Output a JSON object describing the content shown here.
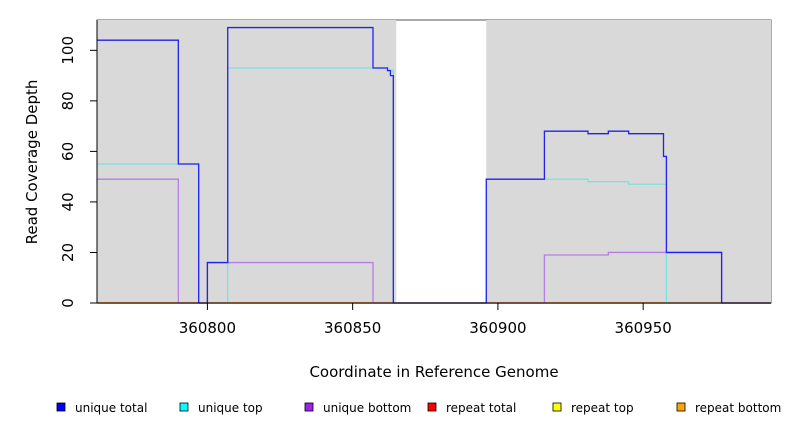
{
  "chart_data": {
    "type": "line",
    "xlabel": "Coordinate in Reference Genome",
    "ylabel": "Read Coverage Depth",
    "xlim": [
      360762,
      360994
    ],
    "ylim": [
      0,
      112
    ],
    "x_ticks": [
      360800,
      360850,
      360900,
      360950
    ],
    "x_tick_labels": [
      "360800",
      "360850",
      "360900",
      "360950"
    ],
    "y_ticks": [
      0,
      20,
      40,
      60,
      80,
      100
    ],
    "y_tick_labels": [
      "0",
      "20",
      "40",
      "60",
      "80",
      "100"
    ],
    "shaded_regions": [
      [
        360762,
        360865
      ],
      [
        360896,
        360994
      ]
    ],
    "legend": {
      "placement": "bottom",
      "entries": [
        {
          "label": "unique total",
          "color": "#0000ff"
        },
        {
          "label": "unique top",
          "color": "#00ffff"
        },
        {
          "label": "unique bottom",
          "color": "#a020f0"
        },
        {
          "label": "repeat total",
          "color": "#ff0000"
        },
        {
          "label": "repeat top",
          "color": "#ffff00"
        },
        {
          "label": "repeat bottom",
          "color": "#ffa500"
        }
      ]
    },
    "series": [
      {
        "name": "unique total",
        "color": "#2222ee",
        "x": [
          360762,
          360790,
          360790,
          360797,
          360797,
          360800,
          360800,
          360807,
          360807,
          360857,
          360857,
          360862,
          360862,
          360863,
          360863,
          360864,
          360864,
          360896,
          360896,
          360916,
          360916,
          360931,
          360931,
          360938,
          360938,
          360945,
          360945,
          360957,
          360957,
          360958,
          360958,
          360977,
          360977,
          360994
        ],
        "y": [
          104,
          104,
          55,
          55,
          0,
          0,
          16,
          16,
          109,
          109,
          93,
          93,
          92,
          92,
          90,
          90,
          0,
          0,
          49,
          49,
          68,
          68,
          67,
          67,
          68,
          68,
          67,
          67,
          58,
          58,
          20,
          20,
          0,
          0
        ]
      },
      {
        "name": "unique top",
        "color": "#7fe0e0",
        "x": [
          360762,
          360790,
          360790,
          360797,
          360797,
          360807,
          360807,
          360857,
          360857,
          360862,
          360862,
          360864,
          360864,
          360896,
          360896,
          360931,
          360931,
          360945,
          360945,
          360958,
          360958,
          360994
        ],
        "y": [
          55,
          55,
          55,
          55,
          0,
          0,
          93,
          93,
          93,
          93,
          92,
          92,
          0,
          0,
          49,
          49,
          48,
          48,
          47,
          47,
          0,
          0
        ]
      },
      {
        "name": "unique bottom",
        "color": "#b77fe0",
        "x": [
          360762,
          360790,
          360790,
          360800,
          360800,
          360857,
          360857,
          360916,
          360916,
          360938,
          360938,
          360958,
          360958,
          360977,
          360977,
          360994
        ],
        "y": [
          49,
          49,
          0,
          0,
          16,
          16,
          0,
          0,
          19,
          19,
          20,
          20,
          20,
          20,
          0,
          0
        ]
      },
      {
        "name": "repeat total",
        "color": "#ff0000",
        "x": [
          360762,
          360994
        ],
        "y": [
          0,
          0
        ]
      },
      {
        "name": "repeat top",
        "color": "#ffff00",
        "x": [
          360762,
          360994
        ],
        "y": [
          0,
          0
        ]
      },
      {
        "name": "repeat bottom",
        "color": "#ffa500",
        "x": [
          360762,
          360994
        ],
        "y": [
          0,
          0
        ]
      }
    ]
  }
}
